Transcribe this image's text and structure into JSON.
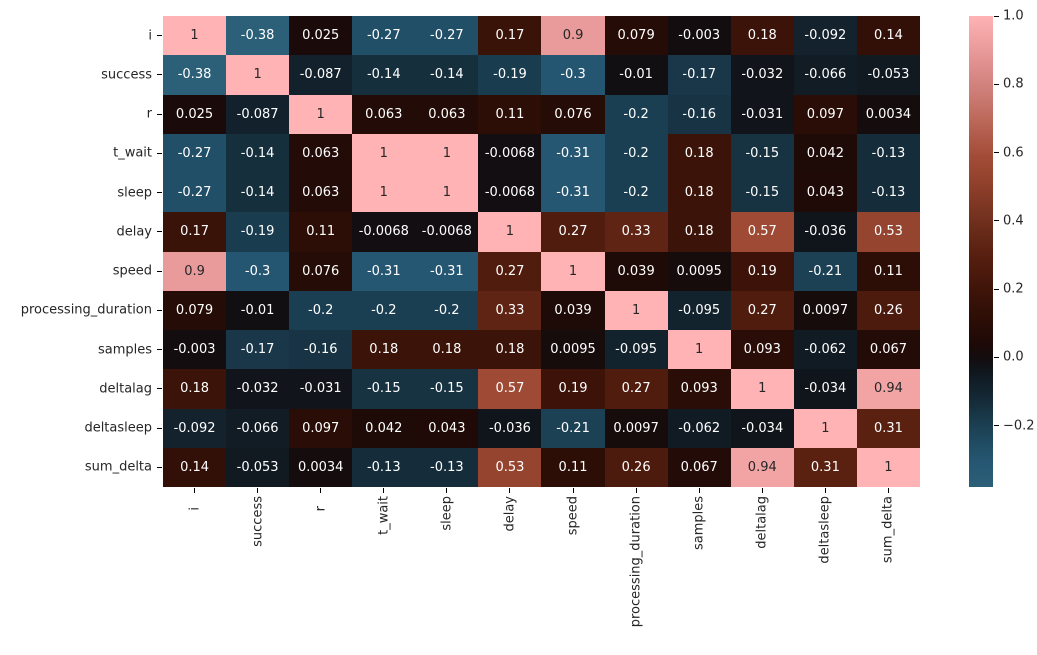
{
  "figure": {
    "background": "#ffffff"
  },
  "chart_data": {
    "type": "heatmap",
    "title": "",
    "xlabel": "",
    "ylabel": "",
    "grid": false,
    "legend_position": "right",
    "categories": [
      "i",
      "success",
      "r",
      "t_wait",
      "sleep",
      "delay",
      "speed",
      "processing_duration",
      "samples",
      "deltalag",
      "deltasleep",
      "sum_delta"
    ],
    "matrix_annotations": [
      [
        "1",
        "-0.38",
        "0.025",
        "-0.27",
        "-0.27",
        "0.17",
        "0.9",
        "0.079",
        "-0.003",
        "0.18",
        "-0.092",
        "0.14"
      ],
      [
        "-0.38",
        "1",
        "-0.087",
        "-0.14",
        "-0.14",
        "-0.19",
        "-0.3",
        "-0.01",
        "-0.17",
        "-0.032",
        "-0.066",
        "-0.053"
      ],
      [
        "0.025",
        "-0.087",
        "1",
        "0.063",
        "0.063",
        "0.11",
        "0.076",
        "-0.2",
        "-0.16",
        "-0.031",
        "0.097",
        "0.0034"
      ],
      [
        "-0.27",
        "-0.14",
        "0.063",
        "1",
        "1",
        "-0.0068",
        "-0.31",
        "-0.2",
        "0.18",
        "-0.15",
        "0.042",
        "-0.13"
      ],
      [
        "-0.27",
        "-0.14",
        "0.063",
        "1",
        "1",
        "-0.0068",
        "-0.31",
        "-0.2",
        "0.18",
        "-0.15",
        "0.043",
        "-0.13"
      ],
      [
        "0.17",
        "-0.19",
        "0.11",
        "-0.0068",
        "-0.0068",
        "1",
        "0.27",
        "0.33",
        "0.18",
        "0.57",
        "-0.036",
        "0.53"
      ],
      [
        "0.9",
        "-0.3",
        "0.076",
        "-0.31",
        "-0.31",
        "0.27",
        "1",
        "0.039",
        "0.0095",
        "0.19",
        "-0.21",
        "0.11"
      ],
      [
        "0.079",
        "-0.01",
        "-0.2",
        "-0.2",
        "-0.2",
        "0.33",
        "0.039",
        "1",
        "-0.095",
        "0.27",
        "0.0097",
        "0.26"
      ],
      [
        "-0.003",
        "-0.17",
        "-0.16",
        "0.18",
        "0.18",
        "0.18",
        "0.0095",
        "-0.095",
        "1",
        "0.093",
        "-0.062",
        "0.067"
      ],
      [
        "0.18",
        "-0.032",
        "-0.031",
        "-0.15",
        "-0.15",
        "0.57",
        "0.19",
        "0.27",
        "0.093",
        "1",
        "-0.034",
        "0.94"
      ],
      [
        "-0.092",
        "-0.066",
        "0.097",
        "0.042",
        "0.043",
        "-0.036",
        "-0.21",
        "0.0097",
        "-0.062",
        "-0.034",
        "1",
        "0.31"
      ],
      [
        "0.14",
        "-0.053",
        "0.0034",
        "-0.13",
        "-0.13",
        "0.53",
        "0.11",
        "0.26",
        "0.067",
        "0.94",
        "0.31",
        "1"
      ]
    ],
    "vmin": -0.38,
    "vmax": 1.0,
    "colorbar_ticks": [
      "1.0",
      "0.8",
      "0.6",
      "0.4",
      "0.2",
      "0.0",
      "−0.2"
    ],
    "palette_anchors": [
      [
        -0.38,
        "#2c5f78"
      ],
      [
        -0.3,
        "#255671"
      ],
      [
        -0.2,
        "#1b3f52"
      ],
      [
        -0.1,
        "#13242f"
      ],
      [
        -0.04,
        "#10161d"
      ],
      [
        0.0,
        "#130c0e"
      ],
      [
        0.04,
        "#1e0a07"
      ],
      [
        0.1,
        "#2a0d06"
      ],
      [
        0.2,
        "#3f1409"
      ],
      [
        0.3,
        "#571f10"
      ],
      [
        0.4,
        "#70301d"
      ],
      [
        0.5,
        "#8e3f2a"
      ],
      [
        0.6,
        "#a54e3a"
      ],
      [
        0.7,
        "#bd6a5c"
      ],
      [
        0.8,
        "#d2837e"
      ],
      [
        0.9,
        "#e99a9a"
      ],
      [
        1.0,
        "#ffb3b5"
      ]
    ],
    "annotation_text_dark": "#262626",
    "annotation_text_light": "#ffffff",
    "tick_color": "#000000"
  }
}
